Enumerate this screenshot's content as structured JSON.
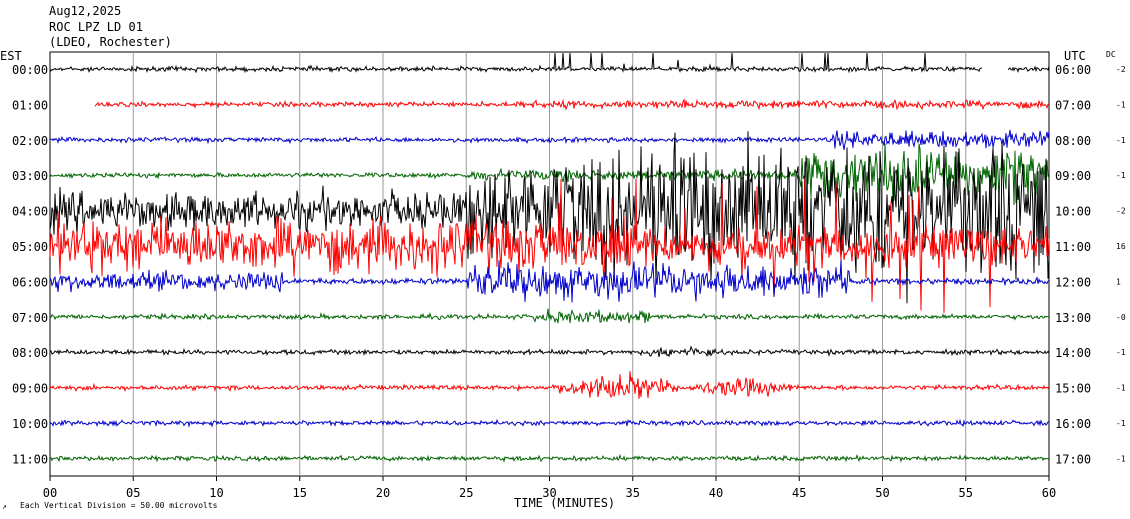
{
  "header": {
    "date": "Aug12,2025",
    "station": "ROC LPZ LD 01",
    "network": "(LDEO, Rochester)"
  },
  "left_zone_label": "EST",
  "right_zone_label": "UTC",
  "dc_label": "DC",
  "x_axis_label": "TIME (MINUTES)",
  "scale_note": "Each Vertical Division =   50.00 microvolts",
  "colors": {
    "black": "#000000",
    "red": "#ff0000",
    "blue": "#0000cc",
    "green": "#006400",
    "grid": "#9a9a9a"
  },
  "chart_data": {
    "type": "line",
    "x_unit": "minutes",
    "xlim": [
      0,
      60
    ],
    "x_ticks": [
      "00",
      "05",
      "10",
      "15",
      "20",
      "25",
      "30",
      "35",
      "40",
      "45",
      "50",
      "55",
      "60"
    ],
    "rows": [
      {
        "est": "00:00",
        "utc": "06:00",
        "dc": "-2",
        "color": "black"
      },
      {
        "est": "01:00",
        "utc": "07:00",
        "dc": "-1",
        "color": "red"
      },
      {
        "est": "02:00",
        "utc": "08:00",
        "dc": "-1",
        "color": "blue"
      },
      {
        "est": "03:00",
        "utc": "09:00",
        "dc": "-1",
        "color": "green"
      },
      {
        "est": "04:00",
        "utc": "10:00",
        "dc": "-2",
        "color": "black"
      },
      {
        "est": "05:00",
        "utc": "11:00",
        "dc": "16",
        "color": "red"
      },
      {
        "est": "06:00",
        "utc": "12:00",
        "dc": "1",
        "color": "blue"
      },
      {
        "est": "07:00",
        "utc": "13:00",
        "dc": "-0",
        "color": "green"
      },
      {
        "est": "08:00",
        "utc": "14:00",
        "dc": "-1",
        "color": "black"
      },
      {
        "est": "09:00",
        "utc": "15:00",
        "dc": "-1",
        "color": "red"
      },
      {
        "est": "10:00",
        "utc": "16:00",
        "dc": "-1",
        "color": "blue"
      },
      {
        "est": "11:00",
        "utc": "17:00",
        "dc": "-1",
        "color": "green"
      }
    ]
  }
}
